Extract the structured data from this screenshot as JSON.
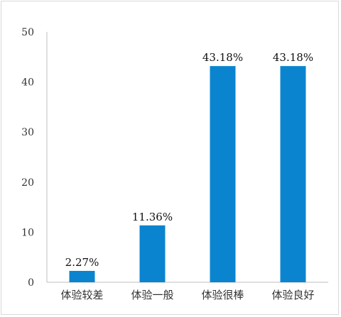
{
  "chart_data": {
    "type": "bar",
    "categories": [
      "体验较差",
      "体验一般",
      "体验很棒",
      "体验良好"
    ],
    "values": [
      2.27,
      11.36,
      43.18,
      43.18
    ],
    "data_labels": [
      "2.27%",
      "11.36%",
      "43.18%",
      "43.18%"
    ],
    "title": "",
    "xlabel": "",
    "ylabel": "",
    "ylim": [
      0,
      50
    ],
    "yticks": [
      0,
      10,
      20,
      30,
      40,
      50
    ],
    "ytick_labels": [
      "0",
      "10",
      "20",
      "30",
      "40",
      "50"
    ],
    "grid": false,
    "legend": "none",
    "bar_color": "#0b84cf",
    "axis_color": "#bfbfbf"
  }
}
